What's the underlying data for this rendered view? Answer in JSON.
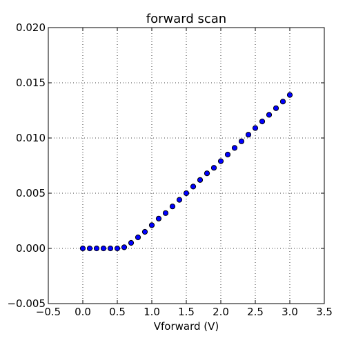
{
  "chart_data": {
    "type": "scatter",
    "title": "forward scan",
    "xlabel": "Vforward (V)",
    "ylabel": "",
    "xlim": [
      -0.5,
      3.5
    ],
    "ylim": [
      -0.005,
      0.02
    ],
    "xticks": [
      "−0.5",
      "0.0",
      "0.5",
      "1.0",
      "1.5",
      "2.0",
      "2.5",
      "3.0",
      "3.5"
    ],
    "yticks": [
      "−0.005",
      "0.000",
      "0.005",
      "0.010",
      "0.015",
      "0.020"
    ],
    "grid": true,
    "marker_color": "#0000ff",
    "marker_edge_color": "#000000",
    "series": [
      {
        "x": [
          0.0,
          0.1,
          0.2,
          0.3,
          0.4,
          0.5,
          0.6,
          0.7,
          0.8,
          0.9,
          1.0,
          1.1,
          1.2,
          1.3,
          1.4,
          1.5,
          1.6,
          1.7,
          1.8,
          1.9,
          2.0,
          2.1,
          2.2,
          2.3,
          2.4,
          2.5,
          2.6,
          2.7,
          2.8,
          2.9,
          3.0
        ],
        "y": [
          0.0,
          0.0,
          0.0,
          0.0,
          0.0,
          0.0,
          0.0001,
          0.0005,
          0.001,
          0.0015,
          0.0021,
          0.0027,
          0.0032,
          0.0038,
          0.0044,
          0.005,
          0.0056,
          0.0062,
          0.0068,
          0.0073,
          0.0079,
          0.0085,
          0.0091,
          0.0097,
          0.0103,
          0.0109,
          0.0115,
          0.0121,
          0.0127,
          0.0133,
          0.0139
        ]
      }
    ]
  }
}
